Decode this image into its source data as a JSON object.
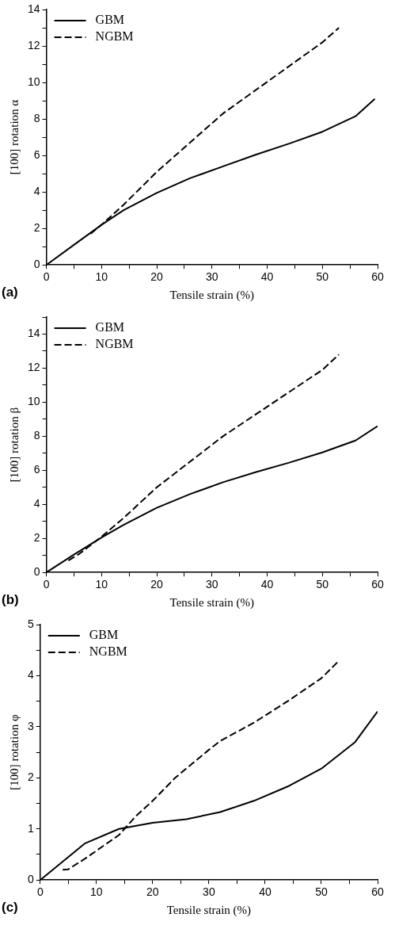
{
  "chart_data": [
    {
      "type": "line",
      "xlabel": "Tensile strain (%)",
      "ylabel": "[100] rotation α",
      "annotations": [
        "(a)"
      ],
      "legend": "top left",
      "marker": "none",
      "grid": false,
      "xlim": [
        0,
        60
      ],
      "xticks": [
        0,
        {
          "value": 5,
          "label": null
        },
        10,
        {
          "value": 15,
          "label": null
        },
        20,
        {
          "value": 25,
          "label": null
        },
        30,
        {
          "value": 35,
          "label": null
        },
        40,
        {
          "value": 45,
          "label": null
        },
        50,
        {
          "value": 55,
          "label": null
        },
        60
      ],
      "ylim": [
        0,
        14
      ],
      "yticks": [
        0,
        {
          "value": 1,
          "label": null
        },
        2,
        {
          "value": 3,
          "label": null
        },
        4,
        {
          "value": 5,
          "label": null
        },
        6,
        {
          "value": 7,
          "label": null
        },
        8,
        {
          "value": 9,
          "label": null
        },
        10,
        {
          "value": 11,
          "label": null
        },
        12,
        {
          "value": 13,
          "label": null
        },
        14
      ],
      "series": [
        {
          "name": "GBM",
          "color": "#000000",
          "line_style": "solid",
          "x": [
            0,
            5,
            10,
            14,
            20,
            26,
            32,
            38,
            44,
            50,
            56,
            59.5
          ],
          "values": [
            0,
            1.1,
            2.2,
            3.0,
            3.95,
            4.75,
            5.4,
            6.05,
            6.65,
            7.3,
            8.15,
            9.1
          ]
        },
        {
          "name": "NGBM",
          "color": "#000000",
          "line_style": "dashed",
          "x": [
            8,
            10,
            14,
            20,
            26,
            32,
            38,
            44,
            50,
            53
          ],
          "values": [
            1.7,
            2.2,
            3.3,
            5.1,
            6.7,
            8.3,
            9.6,
            10.9,
            12.2,
            13.0
          ]
        }
      ]
    },
    {
      "type": "line",
      "xlabel": "Tensile strain (%)",
      "ylabel": "[100] rotation β",
      "annotations": [
        "(b)"
      ],
      "legend": "top left",
      "marker": "none",
      "grid": false,
      "xlim": [
        0,
        60
      ],
      "xticks": [
        0,
        {
          "value": 5,
          "label": null
        },
        10,
        {
          "value": 15,
          "label": null
        },
        20,
        {
          "value": 25,
          "label": null
        },
        30,
        {
          "value": 35,
          "label": null
        },
        40,
        {
          "value": 45,
          "label": null
        },
        50,
        {
          "value": 55,
          "label": null
        },
        60
      ],
      "ylim": [
        0,
        15
      ],
      "yticks": [
        0,
        {
          "value": 1,
          "label": null
        },
        2,
        {
          "value": 3,
          "label": null
        },
        4,
        {
          "value": 5,
          "label": null
        },
        6,
        {
          "value": 7,
          "label": null
        },
        8,
        {
          "value": 9,
          "label": null
        },
        10,
        {
          "value": 11,
          "label": null
        },
        12,
        {
          "value": 13,
          "label": null
        },
        14,
        {
          "value": 15,
          "label": null
        }
      ],
      "series": [
        {
          "name": "GBM",
          "color": "#000000",
          "line_style": "solid",
          "x": [
            0,
            5,
            10,
            14,
            20,
            26,
            32,
            38,
            44,
            50,
            56,
            60
          ],
          "values": [
            0,
            1.05,
            2.05,
            2.8,
            3.8,
            4.6,
            5.3,
            5.9,
            6.45,
            7.05,
            7.75,
            8.6
          ]
        },
        {
          "name": "NGBM",
          "color": "#000000",
          "line_style": "dashed",
          "x": [
            4,
            6,
            10,
            14,
            20,
            26,
            32,
            38,
            44,
            50,
            53
          ],
          "values": [
            0.7,
            1.1,
            2.1,
            3.2,
            5.0,
            6.5,
            8.0,
            9.3,
            10.6,
            11.9,
            12.8
          ]
        }
      ]
    },
    {
      "type": "line",
      "xlabel": "Tensile strain (%)",
      "ylabel": "[100] rotation φ",
      "annotations": [
        "(c)"
      ],
      "legend": "top left",
      "marker": "none",
      "grid": false,
      "xlim": [
        0,
        60
      ],
      "xticks": [
        0,
        {
          "value": 5,
          "label": null
        },
        10,
        {
          "value": 15,
          "label": null
        },
        20,
        {
          "value": 25,
          "label": null
        },
        30,
        {
          "value": 35,
          "label": null
        },
        40,
        {
          "value": 45,
          "label": null
        },
        50,
        {
          "value": 55,
          "label": null
        },
        60
      ],
      "ylim": [
        0,
        5
      ],
      "yticks": [
        0,
        {
          "value": 0.5,
          "label": null
        },
        1,
        {
          "value": 1.5,
          "label": null
        },
        2,
        {
          "value": 2.5,
          "label": null
        },
        3,
        {
          "value": 3.5,
          "label": null
        },
        4,
        {
          "value": 4.5,
          "label": null
        },
        5
      ],
      "series": [
        {
          "name": "GBM",
          "color": "#000000",
          "line_style": "solid",
          "x": [
            0,
            8,
            14,
            20,
            26,
            32,
            38,
            44,
            50,
            56,
            60
          ],
          "values": [
            0,
            0.72,
            1.0,
            1.12,
            1.19,
            1.33,
            1.55,
            1.83,
            2.18,
            2.7,
            3.3
          ]
        },
        {
          "name": "NGBM",
          "color": "#000000",
          "line_style": "dashed",
          "x": [
            4,
            5,
            8,
            14,
            17,
            20,
            24,
            30,
            32,
            38,
            44,
            50,
            53
          ],
          "values": [
            0.2,
            0.21,
            0.42,
            0.88,
            1.25,
            1.55,
            2.0,
            2.55,
            2.72,
            3.08,
            3.5,
            3.95,
            4.28
          ]
        }
      ]
    }
  ]
}
